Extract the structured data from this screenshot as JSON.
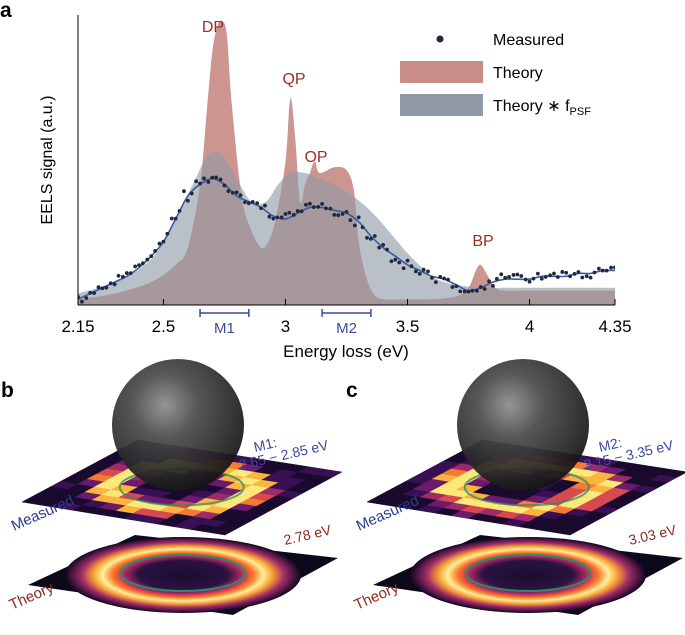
{
  "panels": {
    "a": {
      "label": "a",
      "ylabel": "EELS signal (a.u.)",
      "xlabel": "Energy loss (eV)",
      "peak_labels": [
        "DP",
        "QP",
        "OP",
        "BP"
      ],
      "ranges": [
        {
          "label": "M1",
          "from": 2.65,
          "to": 2.85
        },
        {
          "label": "M2",
          "from": 3.15,
          "to": 3.35
        }
      ],
      "legend": {
        "measured": "Measured",
        "theory": "Theory",
        "theory_psf": "Theory ∗ f",
        "theory_psf_sub": "PSF"
      }
    },
    "b": {
      "label": "b",
      "measured_label": "Measured",
      "theory_label": "Theory",
      "range_line1": "M1:",
      "range_line2": "2.65 − 2.85 eV",
      "theory_energy": "2.78 eV"
    },
    "c": {
      "label": "c",
      "measured_label": "Measured",
      "theory_label": "Theory",
      "range_line1": "M2:",
      "range_line2": "3.15 − 3.35 eV",
      "theory_energy": "3.03 eV"
    }
  },
  "colors": {
    "theory": "#c98c86",
    "theory_psf": "#8f9aa6",
    "measured_dots": "#1f2a3a",
    "fit_line": "#3b5aa8",
    "peak_label": "#9b2f25",
    "range_label": "#3b4aa0",
    "theory_label": "#8c2a20",
    "measured_label": "#2d3a8c"
  },
  "chart_data": {
    "type": "area",
    "xlabel": "Energy loss (eV)",
    "ylabel": "EELS signal (a.u.)",
    "xlim": [
      2.15,
      4.35
    ],
    "ylim": [
      0,
      1.0
    ],
    "xticks": [
      2.15,
      2.5,
      3,
      3.5,
      4,
      4.35
    ],
    "xtick_labels": [
      "2.15",
      "2.5",
      "3",
      "3.5",
      "4",
      "4.35"
    ],
    "series": [
      {
        "name": "Theory",
        "x": [
          2.15,
          2.3,
          2.45,
          2.55,
          2.6,
          2.65,
          2.68,
          2.7,
          2.72,
          2.74,
          2.76,
          2.78,
          2.82,
          2.86,
          2.9,
          2.93,
          2.96,
          3.0,
          3.02,
          3.04,
          3.06,
          3.08,
          3.1,
          3.12,
          3.14,
          3.2,
          3.25,
          3.28,
          3.3,
          3.33,
          3.36,
          3.4,
          3.5,
          3.6,
          3.7,
          3.75,
          3.78,
          3.8,
          3.83,
          3.86,
          3.9,
          4.0,
          4.2,
          4.35
        ],
        "y": [
          0.02,
          0.04,
          0.08,
          0.14,
          0.2,
          0.42,
          0.7,
          0.88,
          0.97,
          0.99,
          0.94,
          0.7,
          0.38,
          0.26,
          0.2,
          0.22,
          0.3,
          0.5,
          0.72,
          0.58,
          0.36,
          0.42,
          0.46,
          0.5,
          0.46,
          0.48,
          0.47,
          0.4,
          0.22,
          0.1,
          0.04,
          0.02,
          0.02,
          0.02,
          0.03,
          0.06,
          0.12,
          0.14,
          0.1,
          0.06,
          0.05,
          0.05,
          0.05,
          0.05
        ]
      },
      {
        "name": "Theory ∗ fPSF",
        "x": [
          2.15,
          2.3,
          2.45,
          2.55,
          2.62,
          2.68,
          2.72,
          2.76,
          2.8,
          2.86,
          2.92,
          2.97,
          3.02,
          3.08,
          3.14,
          3.2,
          3.26,
          3.32,
          3.38,
          3.44,
          3.5,
          3.56,
          3.62,
          3.7,
          3.8,
          3.9,
          4.0,
          4.2,
          4.35
        ],
        "y": [
          0.04,
          0.08,
          0.16,
          0.3,
          0.42,
          0.52,
          0.53,
          0.5,
          0.44,
          0.36,
          0.36,
          0.42,
          0.46,
          0.46,
          0.44,
          0.42,
          0.39,
          0.35,
          0.3,
          0.24,
          0.18,
          0.13,
          0.09,
          0.07,
          0.06,
          0.06,
          0.06,
          0.06,
          0.06
        ]
      },
      {
        "name": "Measured",
        "x": [
          2.15,
          2.2,
          2.25,
          2.3,
          2.35,
          2.4,
          2.45,
          2.5,
          2.55,
          2.6,
          2.65,
          2.7,
          2.75,
          2.8,
          2.85,
          2.9,
          2.95,
          3.0,
          3.05,
          3.1,
          3.15,
          3.2,
          3.25,
          3.3,
          3.35,
          3.4,
          3.45,
          3.5,
          3.55,
          3.6,
          3.65,
          3.7,
          3.75,
          3.8,
          3.85,
          3.9,
          3.95,
          4.0,
          4.05,
          4.1,
          4.15,
          4.2,
          4.25,
          4.3,
          4.35
        ],
        "y": [
          0.02,
          0.04,
          0.06,
          0.08,
          0.1,
          0.13,
          0.17,
          0.22,
          0.3,
          0.38,
          0.42,
          0.44,
          0.42,
          0.38,
          0.36,
          0.34,
          0.31,
          0.3,
          0.32,
          0.34,
          0.34,
          0.33,
          0.32,
          0.29,
          0.24,
          0.2,
          0.17,
          0.14,
          0.12,
          0.1,
          0.09,
          0.07,
          0.05,
          0.06,
          0.08,
          0.09,
          0.09,
          0.09,
          0.1,
          0.1,
          0.1,
          0.11,
          0.11,
          0.12,
          0.12
        ]
      }
    ],
    "annotations": [
      "DP",
      "QP",
      "OP",
      "BP",
      "M1",
      "M2"
    ],
    "legend": [
      "Measured",
      "Theory",
      "Theory ∗ fPSF"
    ],
    "legend_position": "top-right",
    "grid": false
  }
}
